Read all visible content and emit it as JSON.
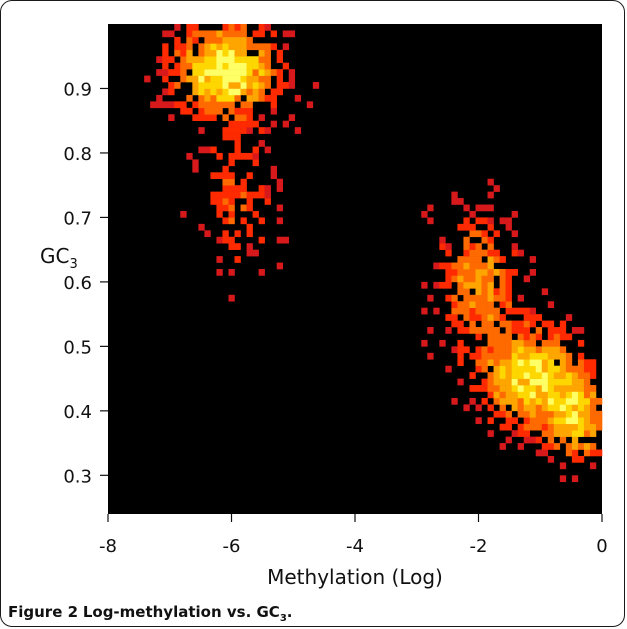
{
  "figure": {
    "number": "Figure 2",
    "caption_pre": "Log-methylation vs. GC",
    "caption_sub": "3",
    "caption_post": "."
  },
  "chart_data": {
    "type": "heatmap",
    "title": "",
    "xlabel": "Methylation (Log)",
    "ylabel_main": "GC",
    "ylabel_sub": "3",
    "xlim": [
      -8,
      0
    ],
    "ylim": [
      0.24,
      1.0
    ],
    "x_ticks": [
      -8,
      -6,
      -4,
      -2,
      0
    ],
    "y_ticks": [
      0.3,
      0.4,
      0.5,
      0.6,
      0.7,
      0.8,
      0.9
    ],
    "background": "#000000",
    "colormap": [
      "#d7191c",
      "#ff2a00",
      "#ff6a00",
      "#ffa500",
      "#ffd700",
      "#ffff66"
    ],
    "clusters": [
      {
        "x": -6.1,
        "y": 0.93,
        "sx": 0.55,
        "sy": 0.045,
        "peak": 1.0
      },
      {
        "x": -5.9,
        "y": 0.73,
        "sx": 0.45,
        "sy": 0.08,
        "peak": 0.35
      },
      {
        "x": -2.0,
        "y": 0.6,
        "sx": 0.45,
        "sy": 0.07,
        "peak": 0.55
      },
      {
        "x": -1.1,
        "y": 0.45,
        "sx": 0.55,
        "sy": 0.05,
        "peak": 0.9
      },
      {
        "x": -0.4,
        "y": 0.38,
        "sx": 0.3,
        "sy": 0.04,
        "peak": 0.7
      }
    ]
  }
}
